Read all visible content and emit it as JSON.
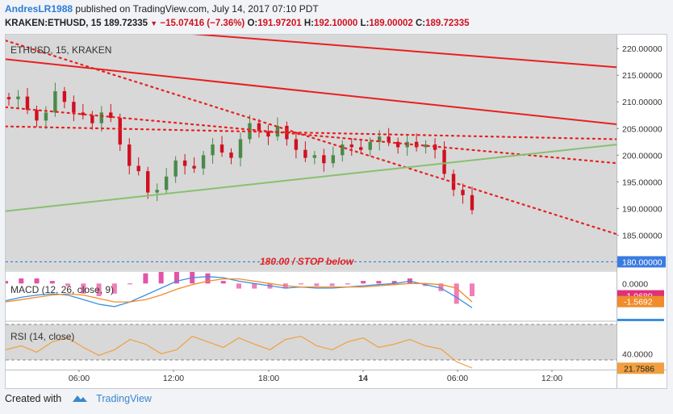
{
  "header": {
    "author": "AndresLR1988",
    "published_text": "published on TradingView.com, July 14, 2017 07:10 PDT"
  },
  "symbol_line": {
    "symbol": "KRAKEN:ETHUSD, 15",
    "price": "189.72335",
    "change": "−15.07416 (−7.36%)",
    "o_label": "O:",
    "o": "191.97201",
    "h_label": "H:",
    "h": "192.10000",
    "l_label": "L:",
    "l": "189.00002",
    "c_label": "C:",
    "c": "189.72335"
  },
  "panes": {
    "main_legend": "ETHUSD, 15, KRAKEN",
    "stop_annotation": "180.00 / STOP below",
    "macd_legend": "MACD (12, 26, close, 9)",
    "rsi_legend": "RSI (14, close)"
  },
  "footer": {
    "created_with": "Created with",
    "brand": "TradingView"
  },
  "colors": {
    "up": "#4a8a4a",
    "down": "#d01020",
    "trend_red": "#e82020",
    "trend_green": "#88c070",
    "stop_line": "#3a7be0",
    "macd_line": "#3e90e0",
    "signal_line": "#f08c2c",
    "hist_up": "#e040a0",
    "rsi_line": "#f0a040"
  },
  "chart_data": [
    {
      "type": "candlestick",
      "title": "ETHUSD, 15, KRAKEN",
      "x_tick_labels": [
        "06:00",
        "12:00",
        "18:00",
        "14",
        "06:00",
        "12:00"
      ],
      "y_tick_labels": [
        "185.00000",
        "190.00000",
        "195.00000",
        "200.00000",
        "205.00000",
        "210.00000",
        "215.00000",
        "220.00000"
      ],
      "ylim": [
        178.4,
        222.6
      ],
      "price_levels": [
        {
          "label": "180.00000",
          "value": 180.0,
          "style": "dashed",
          "color": "#3a7be0"
        }
      ],
      "close_series": [
        210.5,
        211.0,
        208.5,
        206.5,
        208.0,
        212.0,
        210.0,
        208.0,
        207.5,
        206.0,
        208.0,
        207.0,
        202.0,
        198.0,
        197.0,
        193.0,
        193.5,
        196.0,
        199.0,
        198.0,
        197.5,
        200.0,
        202.0,
        200.5,
        199.5,
        203.0,
        206.0,
        204.5,
        203.5,
        205.5,
        203.0,
        201.0,
        199.5,
        200.0,
        198.5,
        200.0,
        202.0,
        201.5,
        201.0,
        202.5,
        203.5,
        202.5,
        201.5,
        202.5,
        201.5,
        202.0,
        201.0,
        196.5,
        193.5,
        192.5,
        189.7
      ],
      "trend_lines": [
        {
          "style": "solid",
          "color": "#e82020",
          "from_value": 225.5,
          "to_value": 216.5
        },
        {
          "style": "solid",
          "color": "#e82020",
          "from_value": 218.0,
          "to_value": 205.8
        },
        {
          "style": "dotted",
          "color": "#e82020",
          "from_value": 221.5,
          "to_value": 185.2
        },
        {
          "style": "dotted",
          "color": "#e82020",
          "from_value": 209.0,
          "to_value": 198.5
        },
        {
          "style": "dotted",
          "color": "#e82020",
          "from_value": 205.4,
          "to_value": 203.0
        },
        {
          "style": "solid",
          "color": "#88c070",
          "from_value": 189.5,
          "to_value": 202.0
        }
      ]
    },
    {
      "type": "line",
      "title": "MACD (12, 26, close, 9)",
      "y_tick_labels": [
        "0.0000",
        "-1.0680",
        "-1.5692"
      ],
      "highlighted_values": [
        -1.068,
        -1.5692
      ],
      "ylim": [
        -3.2,
        1.0
      ],
      "series": [
        {
          "values": [
            -1.5,
            -1.2,
            -1.0,
            -0.9,
            -1.0,
            -1.4,
            -1.8,
            -2.0,
            -1.6,
            -1.0,
            -0.4,
            0.2,
            0.5,
            0.6,
            0.5,
            0.2,
            0.0,
            -0.2,
            -0.4,
            -0.3,
            -0.4,
            -0.4,
            -0.3,
            -0.2,
            -0.1,
            0.0,
            0.2,
            -0.1,
            -0.4,
            -1.2,
            -2.1
          ]
        },
        {
          "values": [
            -1.6,
            -1.4,
            -1.2,
            -1.0,
            -0.9,
            -1.0,
            -1.3,
            -1.6,
            -1.6,
            -1.4,
            -1.0,
            -0.5,
            -0.1,
            0.2,
            0.4,
            0.4,
            0.2,
            0.0,
            -0.2,
            -0.3,
            -0.3,
            -0.3,
            -0.3,
            -0.3,
            -0.2,
            -0.1,
            0.0,
            0.0,
            -0.1,
            -0.4,
            -1.6
          ]
        }
      ]
    },
    {
      "type": "line",
      "title": "RSI (14, close)",
      "y_tick_labels": [
        "40.0000",
        "21.7586"
      ],
      "highlighted_values": [
        21.7586
      ],
      "ylim": [
        20,
        80
      ],
      "series": [
        {
          "values": [
            45,
            50,
            42,
            55,
            60,
            48,
            38,
            45,
            58,
            52,
            40,
            45,
            62,
            55,
            48,
            60,
            52,
            45,
            58,
            62,
            50,
            45,
            55,
            60,
            48,
            52,
            58,
            50,
            46,
            30,
            22
          ]
        }
      ]
    }
  ]
}
